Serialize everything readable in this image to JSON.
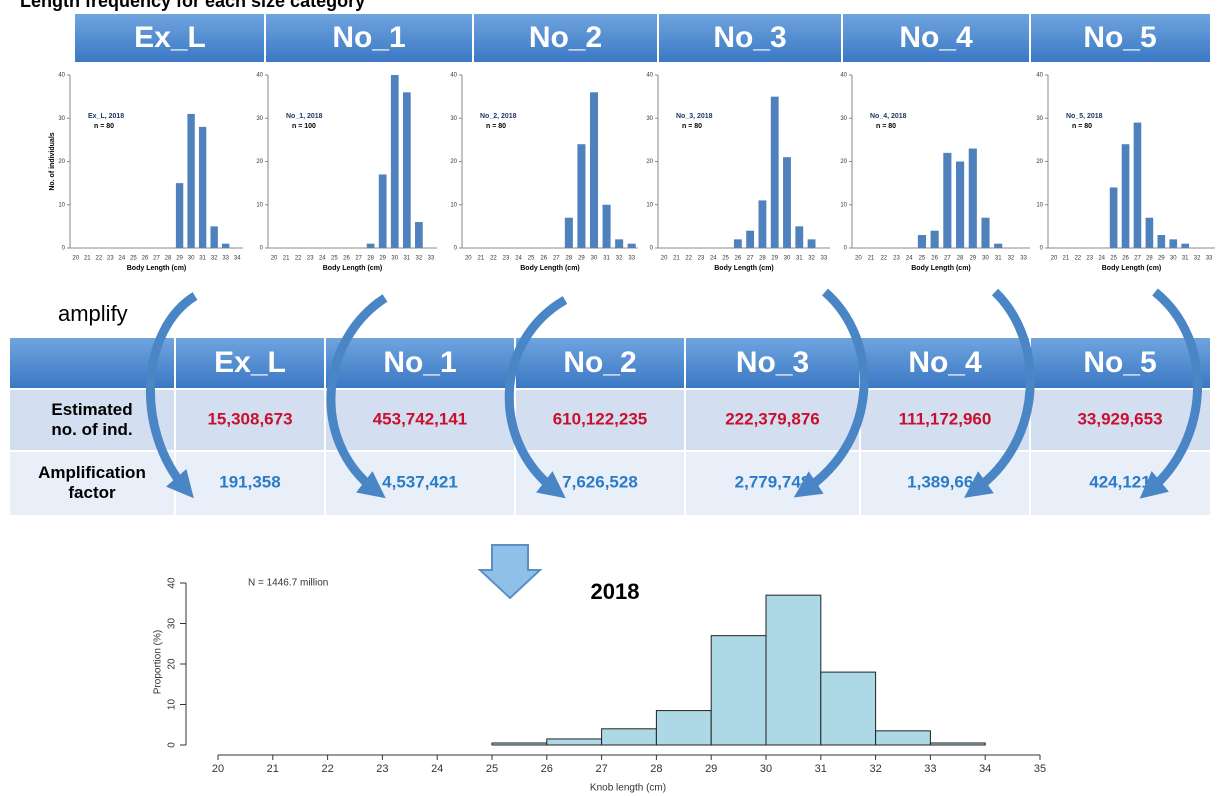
{
  "title": "Length frequency for each size category",
  "header_labels": [
    "Ex_L",
    "No_1",
    "No_2",
    "No_3",
    "No_4",
    "No_5"
  ],
  "amplify_label": "amplify",
  "table": {
    "header": [
      "Ex_L",
      "No_1",
      "No_2",
      "No_3",
      "No_4",
      "No_5"
    ],
    "rows": [
      {
        "label": "Estimated no. of ind.",
        "cells": [
          "15,308,673",
          "453,742,141",
          "610,122,235",
          "222,379,876",
          "111,172,960",
          "33,929,653"
        ]
      },
      {
        "label": "Amplification factor",
        "cells": [
          "191,358",
          "4,537,421",
          "7,626,528",
          "2,779,748",
          "1,389,662",
          "424,121"
        ]
      }
    ]
  },
  "chart_data": [
    {
      "type": "bar",
      "annotation": "Ex_L, 2018",
      "n_label": "n = 80",
      "ylabel": "No. of individuals",
      "xlabel": "Body Length (cm)",
      "color": "#4f81bd",
      "categories": [
        "20",
        "21",
        "22",
        "23",
        "24",
        "25",
        "26",
        "27",
        "28",
        "29",
        "30",
        "31",
        "32",
        "33",
        "34"
      ],
      "values": [
        0,
        0,
        0,
        0,
        0,
        0,
        0,
        0,
        0,
        15,
        31,
        28,
        5,
        1,
        0
      ],
      "ylim": [
        0,
        40
      ],
      "yticks": [
        0,
        10,
        20,
        30,
        40
      ]
    },
    {
      "type": "bar",
      "annotation": "No_1, 2018",
      "n_label": "n = 100",
      "xlabel": "Body Length (cm)",
      "color": "#4f81bd",
      "categories": [
        "20",
        "21",
        "22",
        "23",
        "24",
        "25",
        "26",
        "27",
        "28",
        "29",
        "30",
        "31",
        "32",
        "33"
      ],
      "values": [
        0,
        0,
        0,
        0,
        0,
        0,
        0,
        0,
        1,
        17,
        40,
        36,
        6,
        0
      ],
      "ylim": [
        0,
        40
      ],
      "yticks": [
        0,
        10,
        20,
        30,
        40
      ]
    },
    {
      "type": "bar",
      "annotation": "No_2, 2018",
      "n_label": "n = 80",
      "xlabel": "Body Length (cm)",
      "color": "#4f81bd",
      "categories": [
        "20",
        "21",
        "22",
        "23",
        "24",
        "25",
        "26",
        "27",
        "28",
        "29",
        "30",
        "31",
        "32",
        "33"
      ],
      "values": [
        0,
        0,
        0,
        0,
        0,
        0,
        0,
        0,
        7,
        24,
        36,
        10,
        2,
        1
      ],
      "ylim": [
        0,
        40
      ],
      "yticks": [
        0,
        10,
        20,
        30,
        40
      ]
    },
    {
      "type": "bar",
      "annotation": "No_3, 2018",
      "n_label": "n = 80",
      "xlabel": "Body Length (cm)",
      "color": "#4f81bd",
      "categories": [
        "20",
        "21",
        "22",
        "23",
        "24",
        "25",
        "26",
        "27",
        "28",
        "29",
        "30",
        "31",
        "32",
        "33"
      ],
      "values": [
        0,
        0,
        0,
        0,
        0,
        0,
        2,
        4,
        11,
        35,
        21,
        5,
        2,
        0
      ],
      "ylim": [
        0,
        40
      ],
      "yticks": [
        0,
        10,
        20,
        30,
        40
      ]
    },
    {
      "type": "bar",
      "annotation": "No_4, 2018",
      "n_label": "n = 80",
      "xlabel": "Body Length (cm)",
      "color": "#4f81bd",
      "categories": [
        "20",
        "21",
        "22",
        "23",
        "24",
        "25",
        "26",
        "27",
        "28",
        "29",
        "30",
        "31",
        "32",
        "33"
      ],
      "values": [
        0,
        0,
        0,
        0,
        0,
        3,
        4,
        22,
        20,
        23,
        7,
        1,
        0,
        0
      ],
      "ylim": [
        0,
        40
      ],
      "yticks": [
        0,
        10,
        20,
        30,
        40
      ]
    },
    {
      "type": "bar",
      "annotation": "No_5, 2018",
      "n_label": "n = 80",
      "xlabel": "Body Length (cm)",
      "color": "#4f81bd",
      "categories": [
        "20",
        "21",
        "22",
        "23",
        "24",
        "25",
        "26",
        "27",
        "28",
        "29",
        "30",
        "31",
        "32",
        "33"
      ],
      "values": [
        0,
        0,
        0,
        0,
        0,
        14,
        24,
        29,
        7,
        3,
        2,
        1,
        0,
        0
      ],
      "ylim": [
        0,
        40
      ],
      "yticks": [
        0,
        10,
        20,
        30,
        40
      ]
    },
    {
      "type": "histogram",
      "title": "2018",
      "annotation": "N = 1446.7 million",
      "xlabel": "Knob length (cm)",
      "ylabel": "Proportion (%)",
      "color": "#add8e6",
      "bins": [
        20,
        21,
        22,
        23,
        24,
        25,
        26,
        27,
        28,
        29,
        30,
        31,
        32,
        33,
        34,
        35
      ],
      "values": [
        0,
        0,
        0,
        0,
        0,
        0.5,
        1.5,
        4,
        8.5,
        27,
        37,
        18,
        3.5,
        0.5,
        0
      ],
      "xlim": [
        20,
        35
      ],
      "xticks": [
        20,
        21,
        22,
        23,
        24,
        25,
        26,
        27,
        28,
        29,
        30,
        31,
        32,
        33,
        34,
        35
      ],
      "ylim": [
        0,
        40
      ],
      "yticks": [
        0,
        10,
        20,
        30,
        40
      ]
    }
  ]
}
